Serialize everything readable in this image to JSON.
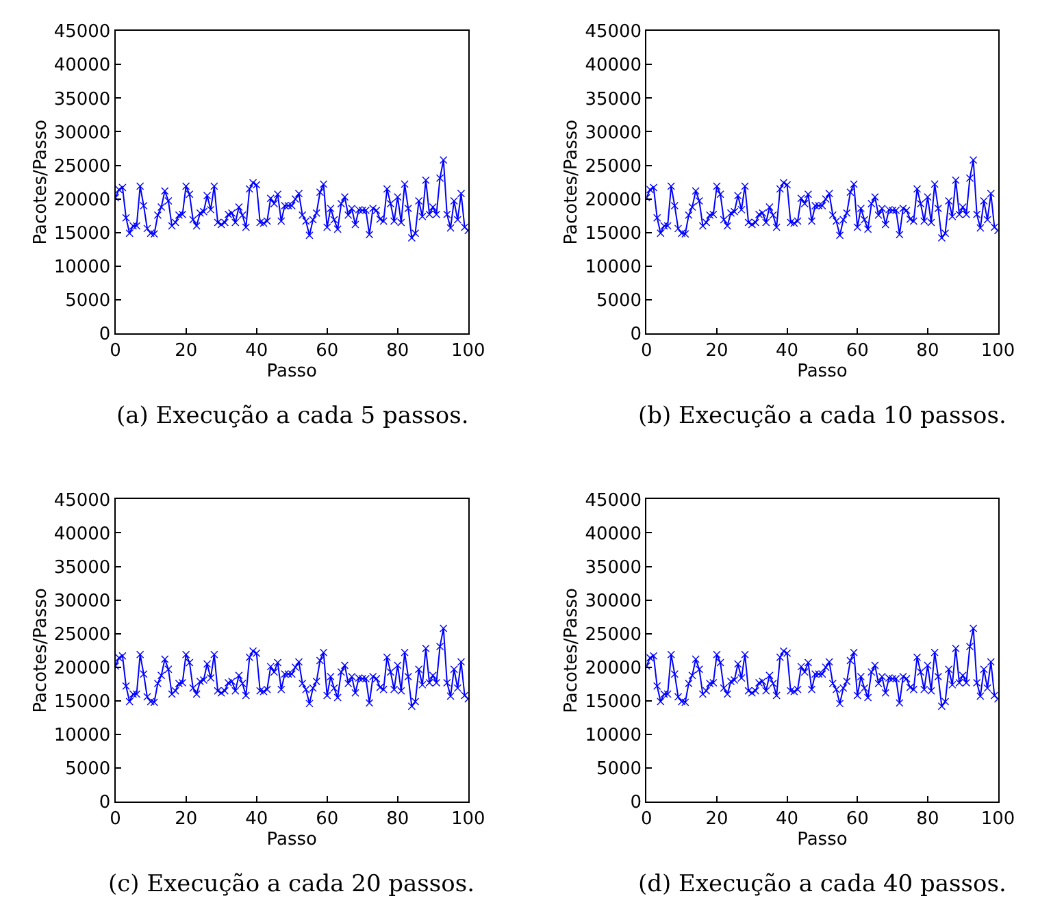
{
  "chart_data": [
    {
      "type": "line",
      "title": "(a) Execução a cada 5 passos.",
      "xlabel": "Passo",
      "ylabel": "Pacotes/Passo",
      "x": [
        0,
        1,
        2,
        3,
        4,
        5,
        6,
        7,
        8,
        9,
        10,
        11,
        12,
        13,
        14,
        15,
        16,
        17,
        18,
        19,
        20,
        21,
        22,
        23,
        24,
        25,
        26,
        27,
        28,
        29,
        30,
        31,
        32,
        33,
        34,
        35,
        36,
        37,
        38,
        39,
        40,
        41,
        42,
        43,
        44,
        45,
        46,
        47,
        48,
        49,
        50,
        51,
        52,
        53,
        54,
        55,
        56,
        57,
        58,
        59,
        60,
        61,
        62,
        63,
        64,
        65,
        66,
        67,
        68,
        69,
        70,
        71,
        72,
        73,
        74,
        75,
        76,
        77,
        78,
        79,
        80,
        81,
        82,
        83,
        84,
        85,
        86,
        87,
        88,
        89,
        90,
        91,
        92,
        93,
        94,
        95,
        96,
        97,
        98,
        99,
        100
      ],
      "series": [
        {
          "color": "#0000ff",
          "values": [
            20200,
            21400,
            21700,
            17200,
            14900,
            16000,
            16000,
            21900,
            19000,
            15600,
            14900,
            14800,
            17600,
            18800,
            21200,
            19700,
            16000,
            16500,
            17600,
            17700,
            21900,
            20700,
            16900,
            16000,
            17900,
            18100,
            20500,
            18400,
            21900,
            16500,
            16200,
            16500,
            17700,
            17900,
            16500,
            18800,
            17600,
            15800,
            21500,
            22400,
            22100,
            16500,
            16400,
            16700,
            20100,
            19300,
            20700,
            16700,
            19000,
            19000,
            19000,
            20000,
            20800,
            17600,
            16700,
            14600,
            16900,
            17900,
            21000,
            22200,
            15800,
            18600,
            16900,
            15500,
            19300,
            20300,
            17600,
            18600,
            16200,
            18400,
            18300,
            18300,
            14700,
            18600,
            18300,
            17000,
            16700,
            21500,
            19300,
            16700,
            20300,
            16500,
            22200,
            18600,
            14200,
            14900,
            19700,
            17400,
            22800,
            17700,
            18800,
            17700,
            23100,
            25800,
            17700,
            15700,
            19700,
            16900,
            20800,
            15800,
            15300
          ]
        }
      ],
      "xlim": [
        0,
        100
      ],
      "xticks": [
        0,
        20,
        40,
        60,
        80,
        100
      ],
      "ylim": [
        0,
        45000
      ],
      "yticks": [
        0,
        5000,
        10000,
        15000,
        20000,
        25000,
        30000,
        35000,
        40000,
        45000
      ],
      "marker": "cross",
      "line_style": "solid"
    },
    {
      "type": "line",
      "title": "(b) Execução a cada 10 passos.",
      "xlabel": "Passo",
      "ylabel": "Pacotes/Passo",
      "x": [
        0,
        1,
        2,
        3,
        4,
        5,
        6,
        7,
        8,
        9,
        10,
        11,
        12,
        13,
        14,
        15,
        16,
        17,
        18,
        19,
        20,
        21,
        22,
        23,
        24,
        25,
        26,
        27,
        28,
        29,
        30,
        31,
        32,
        33,
        34,
        35,
        36,
        37,
        38,
        39,
        40,
        41,
        42,
        43,
        44,
        45,
        46,
        47,
        48,
        49,
        50,
        51,
        52,
        53,
        54,
        55,
        56,
        57,
        58,
        59,
        60,
        61,
        62,
        63,
        64,
        65,
        66,
        67,
        68,
        69,
        70,
        71,
        72,
        73,
        74,
        75,
        76,
        77,
        78,
        79,
        80,
        81,
        82,
        83,
        84,
        85,
        86,
        87,
        88,
        89,
        90,
        91,
        92,
        93,
        94,
        95,
        96,
        97,
        98,
        99,
        100
      ],
      "series": [
        {
          "color": "#0000ff",
          "values": [
            20200,
            21400,
            21700,
            17200,
            14900,
            16000,
            16000,
            21900,
            19000,
            15600,
            14900,
            14800,
            17600,
            18800,
            21200,
            19700,
            16000,
            16500,
            17600,
            17700,
            21900,
            20700,
            16900,
            16000,
            17900,
            18100,
            20500,
            18400,
            21900,
            16500,
            16200,
            16500,
            17700,
            17900,
            16500,
            18800,
            17600,
            15800,
            21500,
            22400,
            22100,
            16500,
            16400,
            16700,
            20100,
            19300,
            20700,
            16700,
            19000,
            19000,
            19000,
            20000,
            20800,
            17600,
            16700,
            14600,
            16900,
            17900,
            21000,
            22200,
            15800,
            18600,
            16900,
            15500,
            19300,
            20300,
            17600,
            18600,
            16200,
            18400,
            18300,
            18300,
            14700,
            18600,
            18300,
            17000,
            16700,
            21500,
            19300,
            16700,
            20300,
            16500,
            22200,
            18600,
            14200,
            14900,
            19700,
            17400,
            22800,
            17700,
            18800,
            17700,
            23100,
            25800,
            17700,
            15700,
            19700,
            16900,
            20800,
            15800,
            15300
          ]
        }
      ],
      "xlim": [
        0,
        100
      ],
      "xticks": [
        0,
        20,
        40,
        60,
        80,
        100
      ],
      "ylim": [
        0,
        45000
      ],
      "yticks": [
        0,
        5000,
        10000,
        15000,
        20000,
        25000,
        30000,
        35000,
        40000,
        45000
      ],
      "marker": "cross",
      "line_style": "solid"
    },
    {
      "type": "line",
      "title": "(c) Execução a cada 20 passos.",
      "xlabel": "Passo",
      "ylabel": "Pacotes/Passo",
      "x": [
        0,
        1,
        2,
        3,
        4,
        5,
        6,
        7,
        8,
        9,
        10,
        11,
        12,
        13,
        14,
        15,
        16,
        17,
        18,
        19,
        20,
        21,
        22,
        23,
        24,
        25,
        26,
        27,
        28,
        29,
        30,
        31,
        32,
        33,
        34,
        35,
        36,
        37,
        38,
        39,
        40,
        41,
        42,
        43,
        44,
        45,
        46,
        47,
        48,
        49,
        50,
        51,
        52,
        53,
        54,
        55,
        56,
        57,
        58,
        59,
        60,
        61,
        62,
        63,
        64,
        65,
        66,
        67,
        68,
        69,
        70,
        71,
        72,
        73,
        74,
        75,
        76,
        77,
        78,
        79,
        80,
        81,
        82,
        83,
        84,
        85,
        86,
        87,
        88,
        89,
        90,
        91,
        92,
        93,
        94,
        95,
        96,
        97,
        98,
        99,
        100
      ],
      "series": [
        {
          "color": "#0000ff",
          "values": [
            20200,
            21400,
            21700,
            17200,
            14900,
            16000,
            16000,
            21900,
            19000,
            15600,
            14900,
            14800,
            17600,
            18800,
            21200,
            19700,
            16000,
            16500,
            17600,
            17700,
            21900,
            20700,
            16900,
            16000,
            17900,
            18100,
            20500,
            18400,
            21900,
            16500,
            16200,
            16500,
            17700,
            17900,
            16500,
            18800,
            17600,
            15800,
            21500,
            22400,
            22100,
            16500,
            16400,
            16700,
            20100,
            19300,
            20700,
            16700,
            19000,
            19000,
            19000,
            20000,
            20800,
            17600,
            16700,
            14600,
            16900,
            17900,
            21000,
            22200,
            15800,
            18600,
            16900,
            15500,
            19300,
            20300,
            17600,
            18600,
            16200,
            18400,
            18300,
            18300,
            14700,
            18600,
            18300,
            17000,
            16700,
            21500,
            19300,
            16700,
            20300,
            16500,
            22200,
            18600,
            14200,
            14900,
            19700,
            17400,
            22800,
            17700,
            18800,
            17700,
            23100,
            25800,
            17700,
            15700,
            19700,
            16900,
            20800,
            15800,
            15300
          ]
        }
      ],
      "xlim": [
        0,
        100
      ],
      "xticks": [
        0,
        20,
        40,
        60,
        80,
        100
      ],
      "ylim": [
        0,
        45000
      ],
      "yticks": [
        0,
        5000,
        10000,
        15000,
        20000,
        25000,
        30000,
        35000,
        40000,
        45000
      ],
      "marker": "cross",
      "line_style": "solid"
    },
    {
      "type": "line",
      "title": "(d) Execução a cada 40 passos.",
      "xlabel": "Passo",
      "ylabel": "Pacotes/Passo",
      "x": [
        0,
        1,
        2,
        3,
        4,
        5,
        6,
        7,
        8,
        9,
        10,
        11,
        12,
        13,
        14,
        15,
        16,
        17,
        18,
        19,
        20,
        21,
        22,
        23,
        24,
        25,
        26,
        27,
        28,
        29,
        30,
        31,
        32,
        33,
        34,
        35,
        36,
        37,
        38,
        39,
        40,
        41,
        42,
        43,
        44,
        45,
        46,
        47,
        48,
        49,
        50,
        51,
        52,
        53,
        54,
        55,
        56,
        57,
        58,
        59,
        60,
        61,
        62,
        63,
        64,
        65,
        66,
        67,
        68,
        69,
        70,
        71,
        72,
        73,
        74,
        75,
        76,
        77,
        78,
        79,
        80,
        81,
        82,
        83,
        84,
        85,
        86,
        87,
        88,
        89,
        90,
        91,
        92,
        93,
        94,
        95,
        96,
        97,
        98,
        99,
        100
      ],
      "series": [
        {
          "color": "#0000ff",
          "values": [
            20200,
            21400,
            21700,
            17200,
            14900,
            16000,
            16000,
            21900,
            19000,
            15600,
            14900,
            14800,
            17600,
            18800,
            21200,
            19700,
            16000,
            16500,
            17600,
            17700,
            21900,
            20700,
            16900,
            16000,
            17900,
            18100,
            20500,
            18400,
            21900,
            16500,
            16200,
            16500,
            17700,
            17900,
            16500,
            18800,
            17600,
            15800,
            21500,
            22400,
            22100,
            16500,
            16400,
            16700,
            20100,
            19300,
            20700,
            16700,
            19000,
            19000,
            19000,
            20000,
            20800,
            17600,
            16700,
            14600,
            16900,
            17900,
            21000,
            22200,
            15800,
            18600,
            16900,
            15500,
            19300,
            20300,
            17600,
            18600,
            16200,
            18400,
            18300,
            18300,
            14700,
            18600,
            18300,
            17000,
            16700,
            21500,
            19300,
            16700,
            20300,
            16500,
            22200,
            18600,
            14200,
            14900,
            19700,
            17400,
            22800,
            17700,
            18800,
            17700,
            23100,
            25800,
            17700,
            15700,
            19700,
            16900,
            20800,
            15800,
            15300
          ]
        }
      ],
      "xlim": [
        0,
        100
      ],
      "xticks": [
        0,
        20,
        40,
        60,
        80,
        100
      ],
      "ylim": [
        0,
        45000
      ],
      "yticks": [
        0,
        5000,
        10000,
        15000,
        20000,
        25000,
        30000,
        35000,
        40000,
        45000
      ],
      "marker": "cross",
      "line_style": "solid"
    }
  ]
}
